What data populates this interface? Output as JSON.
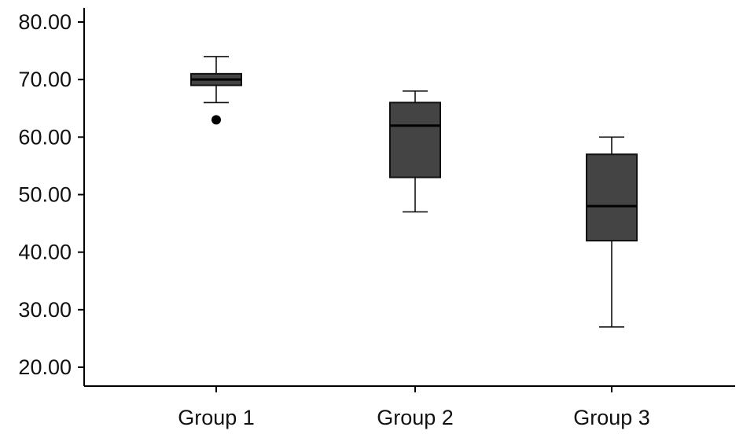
{
  "chart_data": {
    "type": "boxplot",
    "title": "",
    "xlabel": "",
    "ylabel": "",
    "ylim": [
      20,
      80
    ],
    "yticks": [
      "20.00",
      "30.00",
      "40.00",
      "50.00",
      "60.00",
      "70.00",
      "80.00"
    ],
    "grid": false,
    "categories": [
      "Group 1",
      "Group 2",
      "Group 3"
    ],
    "box_color": "#444444",
    "series": [
      {
        "category": "Group 1",
        "min": 66,
        "q1": 69,
        "median": 70,
        "q3": 71,
        "max": 74,
        "outliers": [
          63
        ]
      },
      {
        "category": "Group 2",
        "min": 47,
        "q1": 53,
        "median": 62,
        "q3": 66,
        "max": 68,
        "outliers": []
      },
      {
        "category": "Group 3",
        "min": 27,
        "q1": 42,
        "median": 48,
        "q3": 57,
        "max": 60,
        "outliers": []
      }
    ]
  }
}
